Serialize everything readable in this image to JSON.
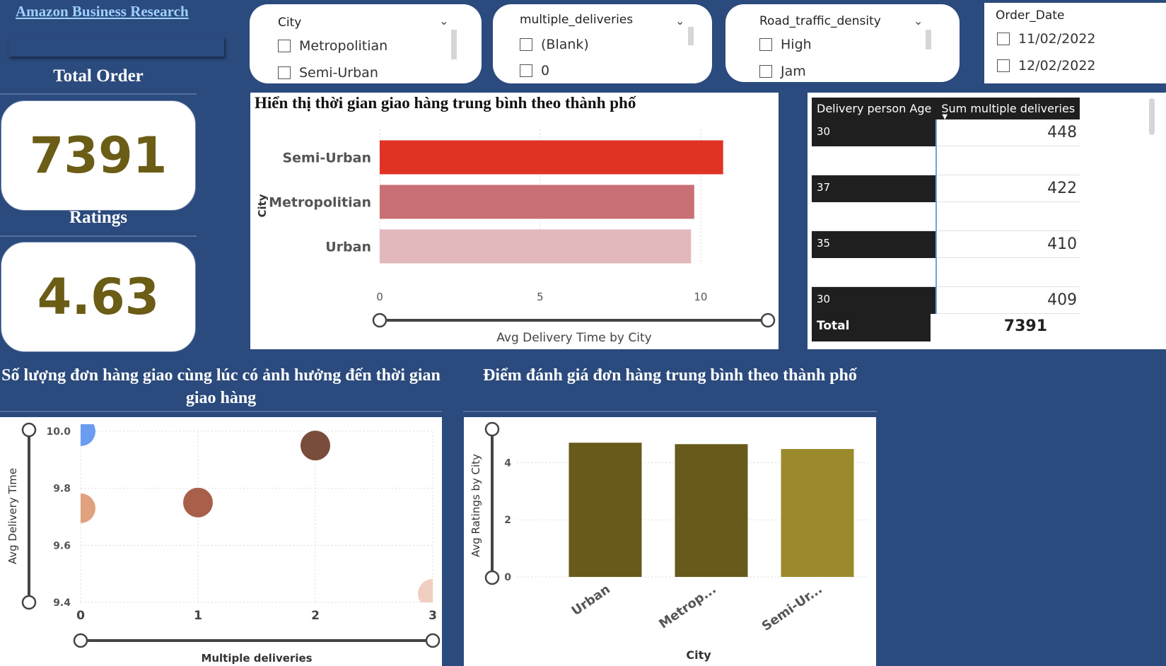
{
  "app": {
    "title": "Amazon Business Research"
  },
  "kpis": [
    {
      "label": "Total Order",
      "value": "7391"
    },
    {
      "label": "Ratings",
      "value": "4.63"
    }
  ],
  "slicers": [
    {
      "title": "City",
      "options": [
        "Metropolitian",
        "Semi-Urban"
      ]
    },
    {
      "title": "multiple_deliveries",
      "options": [
        "(Blank)",
        "0"
      ]
    },
    {
      "title": "Road_traffic_density",
      "options": [
        "High",
        "Jam"
      ]
    },
    {
      "title": "Order_Date",
      "options": [
        "11/02/2022",
        "12/02/2022"
      ]
    }
  ],
  "table": {
    "headers": [
      "Delivery person Age",
      "Sum multiple deliveries"
    ],
    "rows": [
      {
        "age": "30",
        "value": "448"
      },
      {
        "age": "37",
        "value": "422"
      },
      {
        "age": "35",
        "value": "410"
      },
      {
        "age": "30",
        "value": "409"
      }
    ],
    "total_label": "Total",
    "total_value": "7391"
  },
  "chart_data": [
    {
      "type": "bar",
      "orientation": "horizontal",
      "title": "Hiển thị thời gian giao hàng trung bình theo thành phố",
      "ylabel": "City",
      "xlabel": "Avg Delivery Time by City",
      "categories": [
        "Semi-Urban",
        "Metropolitian",
        "Urban"
      ],
      "values": [
        10.7,
        9.8,
        9.7
      ],
      "xlim": [
        0,
        11.5
      ],
      "xticks": [
        0,
        5,
        10
      ],
      "colors": [
        "#e03323",
        "#c97074",
        "#e3b8bb"
      ],
      "grid": true
    },
    {
      "type": "scatter",
      "title": "Số lượng đơn hàng giao cùng lúc có ảnh hưởng đến thời gian giao hàng",
      "xlabel": "Multiple deliveries",
      "ylabel": "Avg Delivery Time",
      "xlim": [
        0,
        3
      ],
      "ylim": [
        9.4,
        10.0
      ],
      "xticks": [
        0,
        1,
        2,
        3
      ],
      "yticks": [
        9.4,
        9.6,
        9.8,
        10.0
      ],
      "points": [
        {
          "x": 0,
          "y": 10.0,
          "color": "#6a9cf0"
        },
        {
          "x": 0,
          "y": 9.73,
          "color": "#e0a17e"
        },
        {
          "x": 1,
          "y": 9.75,
          "color": "#a8604a"
        },
        {
          "x": 2,
          "y": 9.95,
          "color": "#7a4c3c"
        },
        {
          "x": 3,
          "y": 9.43,
          "color": "#f0cfc0"
        }
      ],
      "grid": true
    },
    {
      "type": "bar",
      "title": "Điểm đánh giá đơn hàng trung bình theo thành phố",
      "xlabel": "City",
      "ylabel": "Avg Ratings by City",
      "categories": [
        "Urban",
        "Metrop...",
        "Semi-Ur..."
      ],
      "values": [
        4.7,
        4.65,
        4.48
      ],
      "ylim": [
        0,
        5.2
      ],
      "yticks": [
        0,
        2,
        4
      ],
      "colors": [
        "#675a1a",
        "#675a1a",
        "#9b8a2c"
      ],
      "grid": true
    }
  ]
}
